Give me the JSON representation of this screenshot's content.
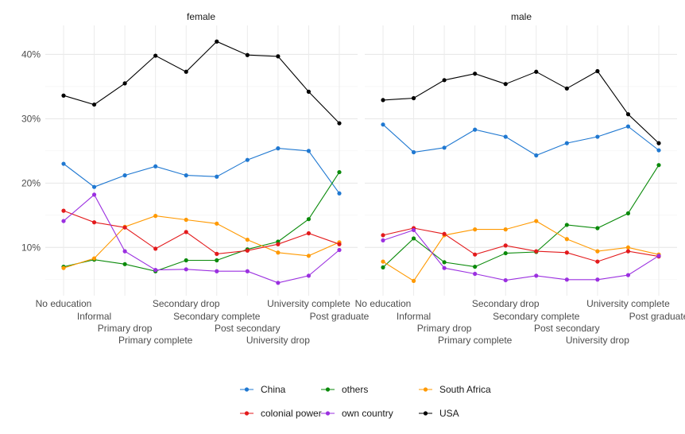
{
  "chart_data": {
    "type": "line",
    "categories": [
      "No education",
      "Informal",
      "Primary drop",
      "Primary complete",
      "Secondary drop",
      "Secondary complete",
      "Post secondary",
      "University drop",
      "University complete",
      "Post graduate"
    ],
    "ylim": [
      0.025,
      0.445
    ],
    "yticks": [
      0.1,
      0.2,
      0.3,
      0.4
    ],
    "ytick_labels": [
      "10%",
      "20%",
      "30%",
      "40%"
    ],
    "grid": true,
    "legend_position": "bottom",
    "panels": [
      {
        "title": "female",
        "series": [
          {
            "name": "China",
            "color": "#1f78d1",
            "values": [
              0.23,
              0.194,
              0.212,
              0.226,
              0.212,
              0.21,
              0.236,
              0.254,
              0.25,
              0.184
            ]
          },
          {
            "name": "others",
            "color": "#0a8a0a",
            "values": [
              0.07,
              0.081,
              0.074,
              0.063,
              0.08,
              0.08,
              0.097,
              0.109,
              0.144,
              0.217
            ]
          },
          {
            "name": "South Africa",
            "color": "#ff9900",
            "values": [
              0.068,
              0.083,
              0.132,
              0.149,
              0.143,
              0.137,
              0.112,
              0.092,
              0.087,
              0.108
            ]
          },
          {
            "name": "colonial power",
            "color": "#e31a1c",
            "values": [
              0.157,
              0.139,
              0.131,
              0.098,
              0.124,
              0.09,
              0.095,
              0.105,
              0.122,
              0.105
            ]
          },
          {
            "name": "own country",
            "color": "#9b30e0",
            "values": [
              0.141,
              0.182,
              0.094,
              0.065,
              0.066,
              0.063,
              0.063,
              0.045,
              0.056,
              0.096
            ]
          },
          {
            "name": "USA",
            "color": "#000000",
            "values": [
              0.336,
              0.322,
              0.355,
              0.398,
              0.373,
              0.42,
              0.399,
              0.397,
              0.342,
              0.293
            ]
          }
        ]
      },
      {
        "title": "male",
        "series": [
          {
            "name": "China",
            "color": "#1f78d1",
            "values": [
              0.291,
              0.248,
              0.255,
              0.283,
              0.272,
              0.243,
              0.262,
              0.272,
              0.288,
              0.251
            ]
          },
          {
            "name": "others",
            "color": "#0a8a0a",
            "values": [
              0.069,
              0.114,
              0.077,
              0.07,
              0.091,
              0.093,
              0.135,
              0.13,
              0.153,
              0.228
            ]
          },
          {
            "name": "South Africa",
            "color": "#ff9900",
            "values": [
              0.078,
              0.048,
              0.119,
              0.128,
              0.128,
              0.141,
              0.113,
              0.094,
              0.1,
              0.089
            ]
          },
          {
            "name": "colonial power",
            "color": "#e31a1c",
            "values": [
              0.119,
              0.13,
              0.121,
              0.089,
              0.103,
              0.094,
              0.092,
              0.078,
              0.094,
              0.086
            ]
          },
          {
            "name": "own country",
            "color": "#9b30e0",
            "values": [
              0.111,
              0.127,
              0.068,
              0.059,
              0.049,
              0.056,
              0.05,
              0.05,
              0.057,
              0.087
            ]
          },
          {
            "name": "USA",
            "color": "#000000",
            "values": [
              0.329,
              0.332,
              0.36,
              0.37,
              0.354,
              0.373,
              0.347,
              0.374,
              0.307,
              0.262
            ]
          }
        ]
      }
    ],
    "legend": [
      {
        "name": "China",
        "color": "#1f78d1"
      },
      {
        "name": "others",
        "color": "#0a8a0a"
      },
      {
        "name": "South Africa",
        "color": "#ff9900"
      },
      {
        "name": "colonial power",
        "color": "#e31a1c"
      },
      {
        "name": "own country",
        "color": "#9b30e0"
      },
      {
        "name": "USA",
        "color": "#000000"
      }
    ]
  }
}
